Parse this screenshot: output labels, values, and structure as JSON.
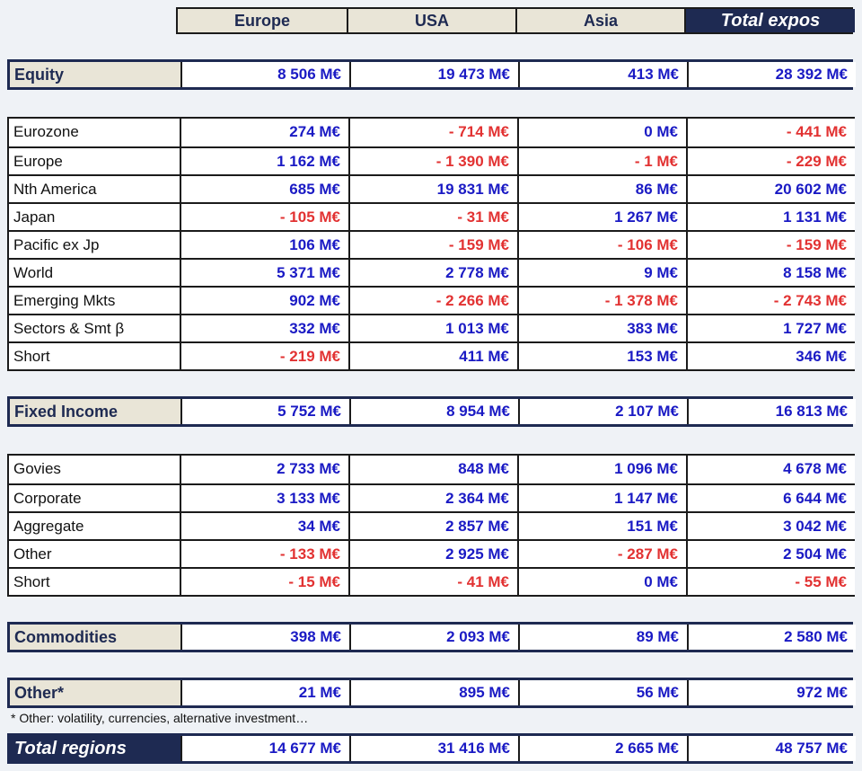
{
  "unit": "M€",
  "colors": {
    "positive_value": "#1a1ac4",
    "negative_value": "#e23232",
    "navy": "#1e2a52",
    "beige": "#e9e5d7",
    "page_background": "#eff2f6"
  },
  "header": {
    "columns": [
      "Europe",
      "USA",
      "Asia",
      "Total expos"
    ]
  },
  "summary": {
    "equity": {
      "label": "Equity",
      "values": [
        "8 506 M€",
        "19 473 M€",
        "413 M€",
        "28 392 M€"
      ]
    },
    "fixed_income": {
      "label": "Fixed Income",
      "values": [
        "5 752 M€",
        "8 954 M€",
        "2 107 M€",
        "16 813 M€"
      ]
    },
    "commodities": {
      "label": "Commodities",
      "values": [
        "398 M€",
        "2 093 M€",
        "89 M€",
        "2 580 M€"
      ]
    },
    "other": {
      "label": "Other*",
      "values": [
        "21 M€",
        "895 M€",
        "56 M€",
        "972 M€"
      ]
    },
    "total_regions": {
      "label": "Total regions",
      "values": [
        "14 677 M€",
        "31 416 M€",
        "2 665 M€",
        "48 757 M€"
      ]
    }
  },
  "tables": {
    "equity_rows": [
      {
        "label": "Eurozone",
        "values": [
          "274 M€",
          "- 714 M€",
          "0 M€",
          "- 441 M€"
        ]
      },
      {
        "label": "Europe",
        "values": [
          "1 162 M€",
          "- 1 390 M€",
          "- 1 M€",
          "- 229 M€"
        ]
      },
      {
        "label": "Nth America",
        "values": [
          "685 M€",
          "19 831 M€",
          "86 M€",
          "20 602 M€"
        ]
      },
      {
        "label": "Japan",
        "values": [
          "- 105 M€",
          "- 31 M€",
          "1 267 M€",
          "1 131 M€"
        ]
      },
      {
        "label": "Pacific ex Jp",
        "values": [
          "106 M€",
          "- 159 M€",
          "- 106 M€",
          "- 159 M€"
        ]
      },
      {
        "label": "World",
        "values": [
          "5 371 M€",
          "2 778 M€",
          "9 M€",
          "8 158 M€"
        ]
      },
      {
        "label": "Emerging Mkts",
        "values": [
          "902 M€",
          "- 2 266 M€",
          "- 1 378 M€",
          "- 2 743 M€"
        ]
      },
      {
        "label": "Sectors & Smt β",
        "values": [
          "332 M€",
          "1 013 M€",
          "383 M€",
          "1 727 M€"
        ]
      },
      {
        "label": "Short",
        "values": [
          "- 219 M€",
          "411 M€",
          "153 M€",
          "346 M€"
        ]
      }
    ],
    "fixed_income_rows": [
      {
        "label": "Govies",
        "values": [
          "2 733 M€",
          "848 M€",
          "1 096 M€",
          "4 678 M€"
        ]
      },
      {
        "label": "Corporate",
        "values": [
          "3 133 M€",
          "2 364 M€",
          "1 147 M€",
          "6 644 M€"
        ]
      },
      {
        "label": "Aggregate",
        "values": [
          "34 M€",
          "2 857 M€",
          "151 M€",
          "3 042 M€"
        ]
      },
      {
        "label": "Other",
        "values": [
          "- 133 M€",
          "2 925 M€",
          "- 287 M€",
          "2 504 M€"
        ]
      },
      {
        "label": "Short",
        "values": [
          "- 15 M€",
          "- 41 M€",
          "0 M€",
          "- 55 M€"
        ]
      }
    ]
  },
  "footnote": "* Other: volatility, currencies, alternative investment…"
}
